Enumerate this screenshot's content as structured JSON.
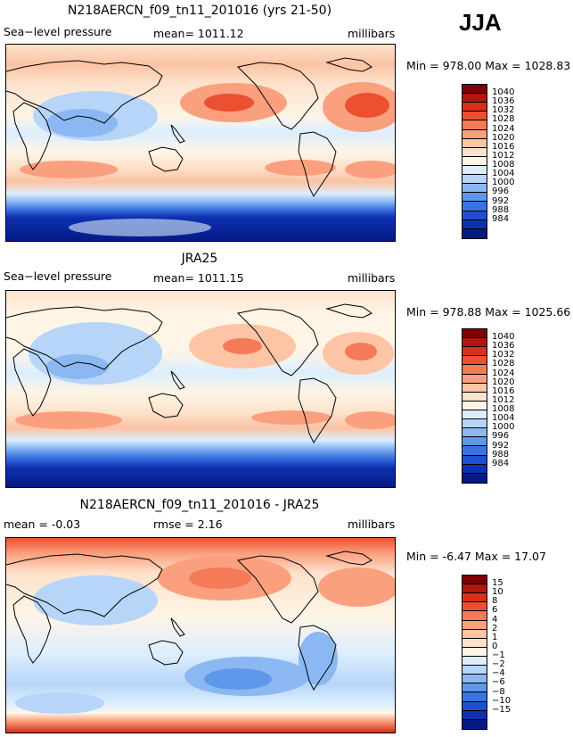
{
  "season": "JJA",
  "panels": [
    {
      "title": "N218AERCN_f09_tn11_201016 (yrs 21-50)",
      "left_label": "Sea−level pressure",
      "center_label": "mean=  1011.12",
      "right_label": "millibars",
      "minmax": "Min = 978.00 Max = 1028.83",
      "colorbar": {
        "colors": [
          "#7f0000",
          "#b2160e",
          "#d62f1a",
          "#ec5030",
          "#f57a58",
          "#fba07e",
          "#fec4a6",
          "#fde2cc",
          "#fff5e6",
          "#dceefe",
          "#b6d5f8",
          "#8bb8f2",
          "#5f97ea",
          "#3c72e0",
          "#1f4fd1",
          "#0e31b0",
          "#061a86"
        ],
        "labels": [
          "1040",
          "1036",
          "1032",
          "1028",
          "1024",
          "1020",
          "1016",
          "1012",
          "1008",
          "1004",
          "1000",
          "996",
          "992",
          "988",
          "984"
        ]
      }
    },
    {
      "title": "JRA25",
      "left_label": "Sea−level pressure",
      "center_label": "mean=  1011.15",
      "right_label": "millibars",
      "minmax": "Min = 978.88 Max = 1025.66",
      "colorbar": {
        "colors": [
          "#7f0000",
          "#b2160e",
          "#d62f1a",
          "#ec5030",
          "#f57a58",
          "#fba07e",
          "#fec4a6",
          "#fde2cc",
          "#fff5e6",
          "#dceefe",
          "#b6d5f8",
          "#8bb8f2",
          "#5f97ea",
          "#3c72e0",
          "#1f4fd1",
          "#0e31b0",
          "#061a86"
        ],
        "labels": [
          "1040",
          "1036",
          "1032",
          "1028",
          "1024",
          "1020",
          "1016",
          "1012",
          "1008",
          "1004",
          "1000",
          "996",
          "992",
          "988",
          "984"
        ]
      }
    },
    {
      "title": "N218AERCN_f09_tn11_201016 - JRA25",
      "left_label": "mean =   -0.03",
      "center_label": "rmse =    2.16",
      "right_label": "millibars",
      "minmax": "Min =  -6.47 Max =  17.07",
      "colorbar": {
        "colors": [
          "#7f0000",
          "#b2160e",
          "#d62f1a",
          "#ec5030",
          "#f57a58",
          "#fba07e",
          "#fec4a6",
          "#fde2cc",
          "#fff5e6",
          "#dceefe",
          "#b6d5f8",
          "#8bb8f2",
          "#5f97ea",
          "#3c72e0",
          "#1f4fd1",
          "#0e31b0",
          "#061a86"
        ],
        "labels": [
          "15",
          "10",
          "8",
          "6",
          "4",
          "2",
          "1",
          "0",
          "−1",
          "−2",
          "−4",
          "−6",
          "−8",
          "−10",
          "−15"
        ]
      }
    }
  ]
}
